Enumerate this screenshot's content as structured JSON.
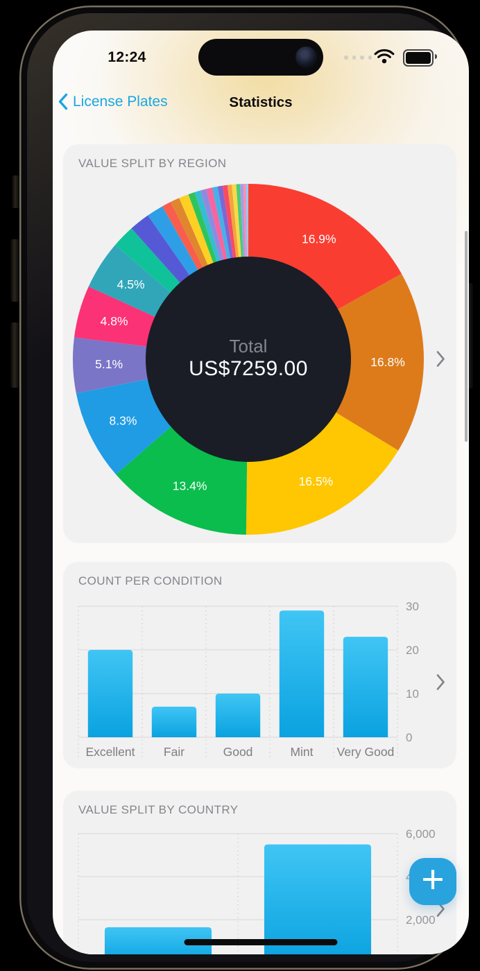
{
  "status_bar": {
    "time": "12:24"
  },
  "nav": {
    "back_label": "License Plates",
    "title": "Statistics"
  },
  "colors": {
    "accent_blue": "#1aa6e3",
    "bar_top": "#40c5f4",
    "bar_bottom": "#0aa2e0",
    "donut_center": "#1a1d25",
    "card_bg": "#f1f1f2",
    "fab_bg": "#29a3de"
  },
  "chart_data": [
    {
      "type": "pie",
      "title": "VALUE SPLIT BY REGION",
      "center_label": "Total",
      "center_value": "US$7259.00",
      "slices": [
        {
          "label": "16.9%",
          "value": 16.9,
          "color": "#fa3d31"
        },
        {
          "label": "16.8%",
          "value": 16.8,
          "color": "#dd7b1b"
        },
        {
          "label": "16.5%",
          "value": 16.5,
          "color": "#fec701"
        },
        {
          "label": "13.4%",
          "value": 13.4,
          "color": "#0abd4d"
        },
        {
          "label": "8.3%",
          "value": 8.3,
          "color": "#209ce4"
        },
        {
          "label": "5.1%",
          "value": 5.1,
          "color": "#7a75c7"
        },
        {
          "label": "4.8%",
          "value": 4.8,
          "color": "#fb3276"
        },
        {
          "label": "4.5%",
          "value": 4.5,
          "color": "#31a6b9"
        }
      ],
      "small_slices": [
        {
          "value": 2.1,
          "color": "#10c29a"
        },
        {
          "value": 1.9,
          "color": "#5659d6"
        },
        {
          "value": 1.55,
          "color": "#2e9fe6"
        },
        {
          "value": 0.85,
          "color": "#f95d4d"
        },
        {
          "value": 0.85,
          "color": "#e0862f"
        },
        {
          "value": 0.9,
          "color": "#fdd023"
        },
        {
          "value": 0.6,
          "color": "#2ec45c"
        },
        {
          "value": 0.55,
          "color": "#38bcd3"
        },
        {
          "value": 0.55,
          "color": "#8f8adf"
        },
        {
          "value": 0.55,
          "color": "#f8649c"
        },
        {
          "value": 0.5,
          "color": "#45b1e8"
        },
        {
          "value": 0.45,
          "color": "#7d66d5"
        },
        {
          "value": 0.45,
          "color": "#fa4a62"
        },
        {
          "value": 0.4,
          "color": "#f0a63c"
        },
        {
          "value": 0.4,
          "color": "#f7d94a"
        },
        {
          "value": 0.35,
          "color": "#49cc79"
        },
        {
          "value": 0.3,
          "color": "#a79be8"
        },
        {
          "value": 0.25,
          "color": "#f78fb5"
        },
        {
          "value": 0.2,
          "color": "#8ccdf1"
        }
      ]
    },
    {
      "type": "bar",
      "title": "COUNT PER CONDITION",
      "categories": [
        "Excellent",
        "Fair",
        "Good",
        "Mint",
        "Very Good"
      ],
      "values": [
        20,
        7,
        10,
        29,
        23
      ],
      "ylim": [
        0,
        30
      ],
      "yticks": [
        0,
        10,
        20,
        30
      ],
      "ytick_labels": [
        "0",
        "10",
        "20",
        "30"
      ]
    },
    {
      "type": "bar",
      "title": "VALUE SPLIT BY COUNTRY",
      "categories": [
        "",
        ""
      ],
      "values": [
        1650,
        5500
      ],
      "ylim": [
        0,
        6000
      ],
      "yticks": [
        2000,
        4000,
        6000
      ],
      "ytick_labels": [
        "2,000",
        "4,000",
        "6,000"
      ]
    }
  ],
  "fab": {
    "label": "+"
  }
}
